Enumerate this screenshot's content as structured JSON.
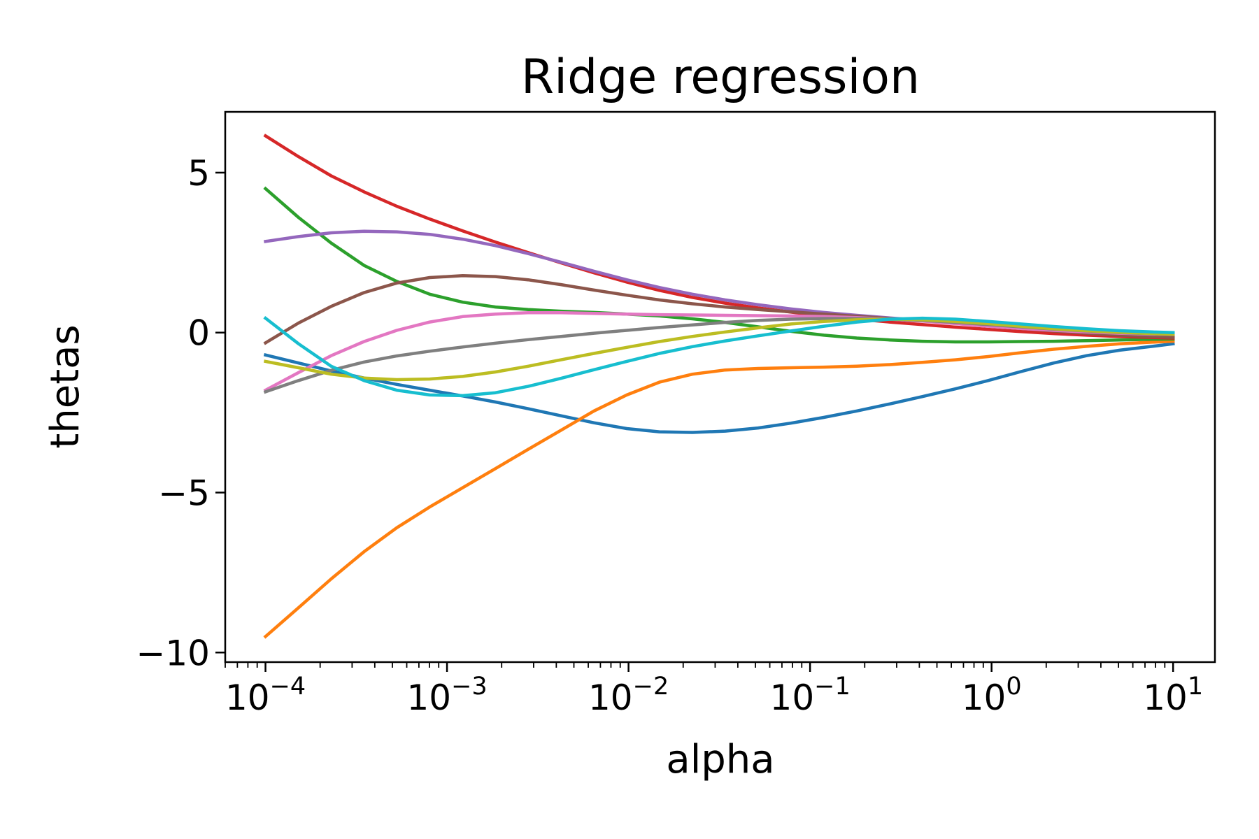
{
  "chart_data": {
    "type": "line",
    "title": "Ridge regression",
    "xlabel": "alpha",
    "ylabel": "thetas",
    "xscale": "log",
    "xlim": [
      6e-05,
      17
    ],
    "ylim": [
      -10.3,
      6.9
    ],
    "grid": false,
    "legend": "none",
    "xticks": [
      {
        "value": 0.0001,
        "base": "10",
        "exp": "−4"
      },
      {
        "value": 0.001,
        "base": "10",
        "exp": "−3"
      },
      {
        "value": 0.01,
        "base": "10",
        "exp": "−2"
      },
      {
        "value": 0.1,
        "base": "10",
        "exp": "−1"
      },
      {
        "value": 1,
        "base": "10",
        "exp": "0"
      },
      {
        "value": 10,
        "base": "10",
        "exp": "1"
      }
    ],
    "yticks": [
      {
        "value": 5,
        "label": "5"
      },
      {
        "value": 0,
        "label": "0"
      },
      {
        "value": -5,
        "label": "−5"
      },
      {
        "value": -10,
        "label": "−10"
      }
    ],
    "x": [
      0.0001,
      0.000152,
      0.00023,
      0.000349,
      0.000529,
      0.000803,
      0.00122,
      0.00185,
      0.0028,
      0.00425,
      0.00645,
      0.00978,
      0.0148,
      0.0225,
      0.0341,
      0.0518,
      0.0785,
      0.119,
      0.181,
      0.274,
      0.416,
      0.631,
      0.957,
      1.45,
      2.2,
      3.34,
      5.07,
      7.68,
      10
    ],
    "series": [
      {
        "color": "#1f77b4",
        "values": [
          -0.7,
          -0.95,
          -1.2,
          -1.42,
          -1.62,
          -1.8,
          -1.98,
          -2.17,
          -2.38,
          -2.6,
          -2.82,
          -3.0,
          -3.1,
          -3.12,
          -3.08,
          -2.98,
          -2.83,
          -2.65,
          -2.45,
          -2.23,
          -2.0,
          -1.76,
          -1.5,
          -1.22,
          -0.95,
          -0.72,
          -0.55,
          -0.43,
          -0.35
        ]
      },
      {
        "color": "#ff7f0e",
        "values": [
          -9.5,
          -8.6,
          -7.7,
          -6.85,
          -6.1,
          -5.45,
          -4.85,
          -4.25,
          -3.65,
          -3.05,
          -2.45,
          -1.95,
          -1.55,
          -1.3,
          -1.17,
          -1.12,
          -1.1,
          -1.08,
          -1.05,
          -1.0,
          -0.93,
          -0.85,
          -0.75,
          -0.63,
          -0.52,
          -0.43,
          -0.35,
          -0.3,
          -0.27
        ]
      },
      {
        "color": "#2ca02c",
        "values": [
          4.5,
          3.6,
          2.8,
          2.1,
          1.6,
          1.2,
          0.95,
          0.8,
          0.72,
          0.67,
          0.63,
          0.58,
          0.52,
          0.43,
          0.32,
          0.18,
          0.04,
          -0.08,
          -0.17,
          -0.23,
          -0.27,
          -0.29,
          -0.29,
          -0.28,
          -0.27,
          -0.25,
          -0.23,
          -0.21,
          -0.2
        ]
      },
      {
        "color": "#d62728",
        "values": [
          6.15,
          5.5,
          4.9,
          4.4,
          3.95,
          3.55,
          3.18,
          2.83,
          2.5,
          2.18,
          1.87,
          1.58,
          1.32,
          1.1,
          0.92,
          0.77,
          0.64,
          0.52,
          0.42,
          0.33,
          0.25,
          0.17,
          0.1,
          0.03,
          -0.03,
          -0.08,
          -0.12,
          -0.15,
          -0.17
        ]
      },
      {
        "color": "#9467bd",
        "values": [
          2.85,
          3.0,
          3.12,
          3.17,
          3.15,
          3.07,
          2.92,
          2.72,
          2.47,
          2.2,
          1.92,
          1.65,
          1.41,
          1.2,
          1.02,
          0.87,
          0.74,
          0.63,
          0.54,
          0.46,
          0.38,
          0.3,
          0.23,
          0.16,
          0.1,
          0.05,
          0.01,
          -0.02,
          -0.03
        ]
      },
      {
        "color": "#8c564b",
        "values": [
          -0.32,
          0.3,
          0.82,
          1.25,
          1.55,
          1.72,
          1.78,
          1.75,
          1.65,
          1.5,
          1.33,
          1.17,
          1.02,
          0.9,
          0.8,
          0.72,
          0.65,
          0.58,
          0.51,
          0.44,
          0.37,
          0.29,
          0.21,
          0.13,
          0.05,
          -0.02,
          -0.08,
          -0.12,
          -0.15
        ]
      },
      {
        "color": "#e377c2",
        "values": [
          -1.8,
          -1.25,
          -0.72,
          -0.28,
          0.07,
          0.33,
          0.5,
          0.58,
          0.62,
          0.62,
          0.6,
          0.58,
          0.56,
          0.55,
          0.54,
          0.53,
          0.52,
          0.5,
          0.47,
          0.42,
          0.36,
          0.28,
          0.2,
          0.13,
          0.07,
          0.02,
          -0.02,
          -0.05,
          -0.06
        ]
      },
      {
        "color": "#7f7f7f",
        "values": [
          -1.85,
          -1.5,
          -1.18,
          -0.92,
          -0.73,
          -0.58,
          -0.45,
          -0.33,
          -0.22,
          -0.12,
          -0.02,
          0.07,
          0.16,
          0.24,
          0.32,
          0.38,
          0.42,
          0.44,
          0.44,
          0.42,
          0.38,
          0.32,
          0.25,
          0.18,
          0.11,
          0.05,
          0.0,
          -0.04,
          -0.06
        ]
      },
      {
        "color": "#bcbd22",
        "values": [
          -0.9,
          -1.1,
          -1.3,
          -1.42,
          -1.47,
          -1.45,
          -1.37,
          -1.23,
          -1.05,
          -0.85,
          -0.65,
          -0.46,
          -0.28,
          -0.12,
          0.02,
          0.15,
          0.27,
          0.35,
          0.4,
          0.42,
          0.4,
          0.35,
          0.28,
          0.2,
          0.12,
          0.06,
          0.01,
          -0.03,
          -0.05
        ]
      },
      {
        "color": "#17becf",
        "values": [
          0.45,
          -0.35,
          -1.05,
          -1.5,
          -1.8,
          -1.95,
          -1.97,
          -1.88,
          -1.68,
          -1.43,
          -1.16,
          -0.9,
          -0.65,
          -0.44,
          -0.26,
          -0.1,
          0.05,
          0.2,
          0.33,
          0.42,
          0.45,
          0.42,
          0.35,
          0.27,
          0.19,
          0.12,
          0.06,
          0.02,
          0.0
        ]
      }
    ]
  }
}
